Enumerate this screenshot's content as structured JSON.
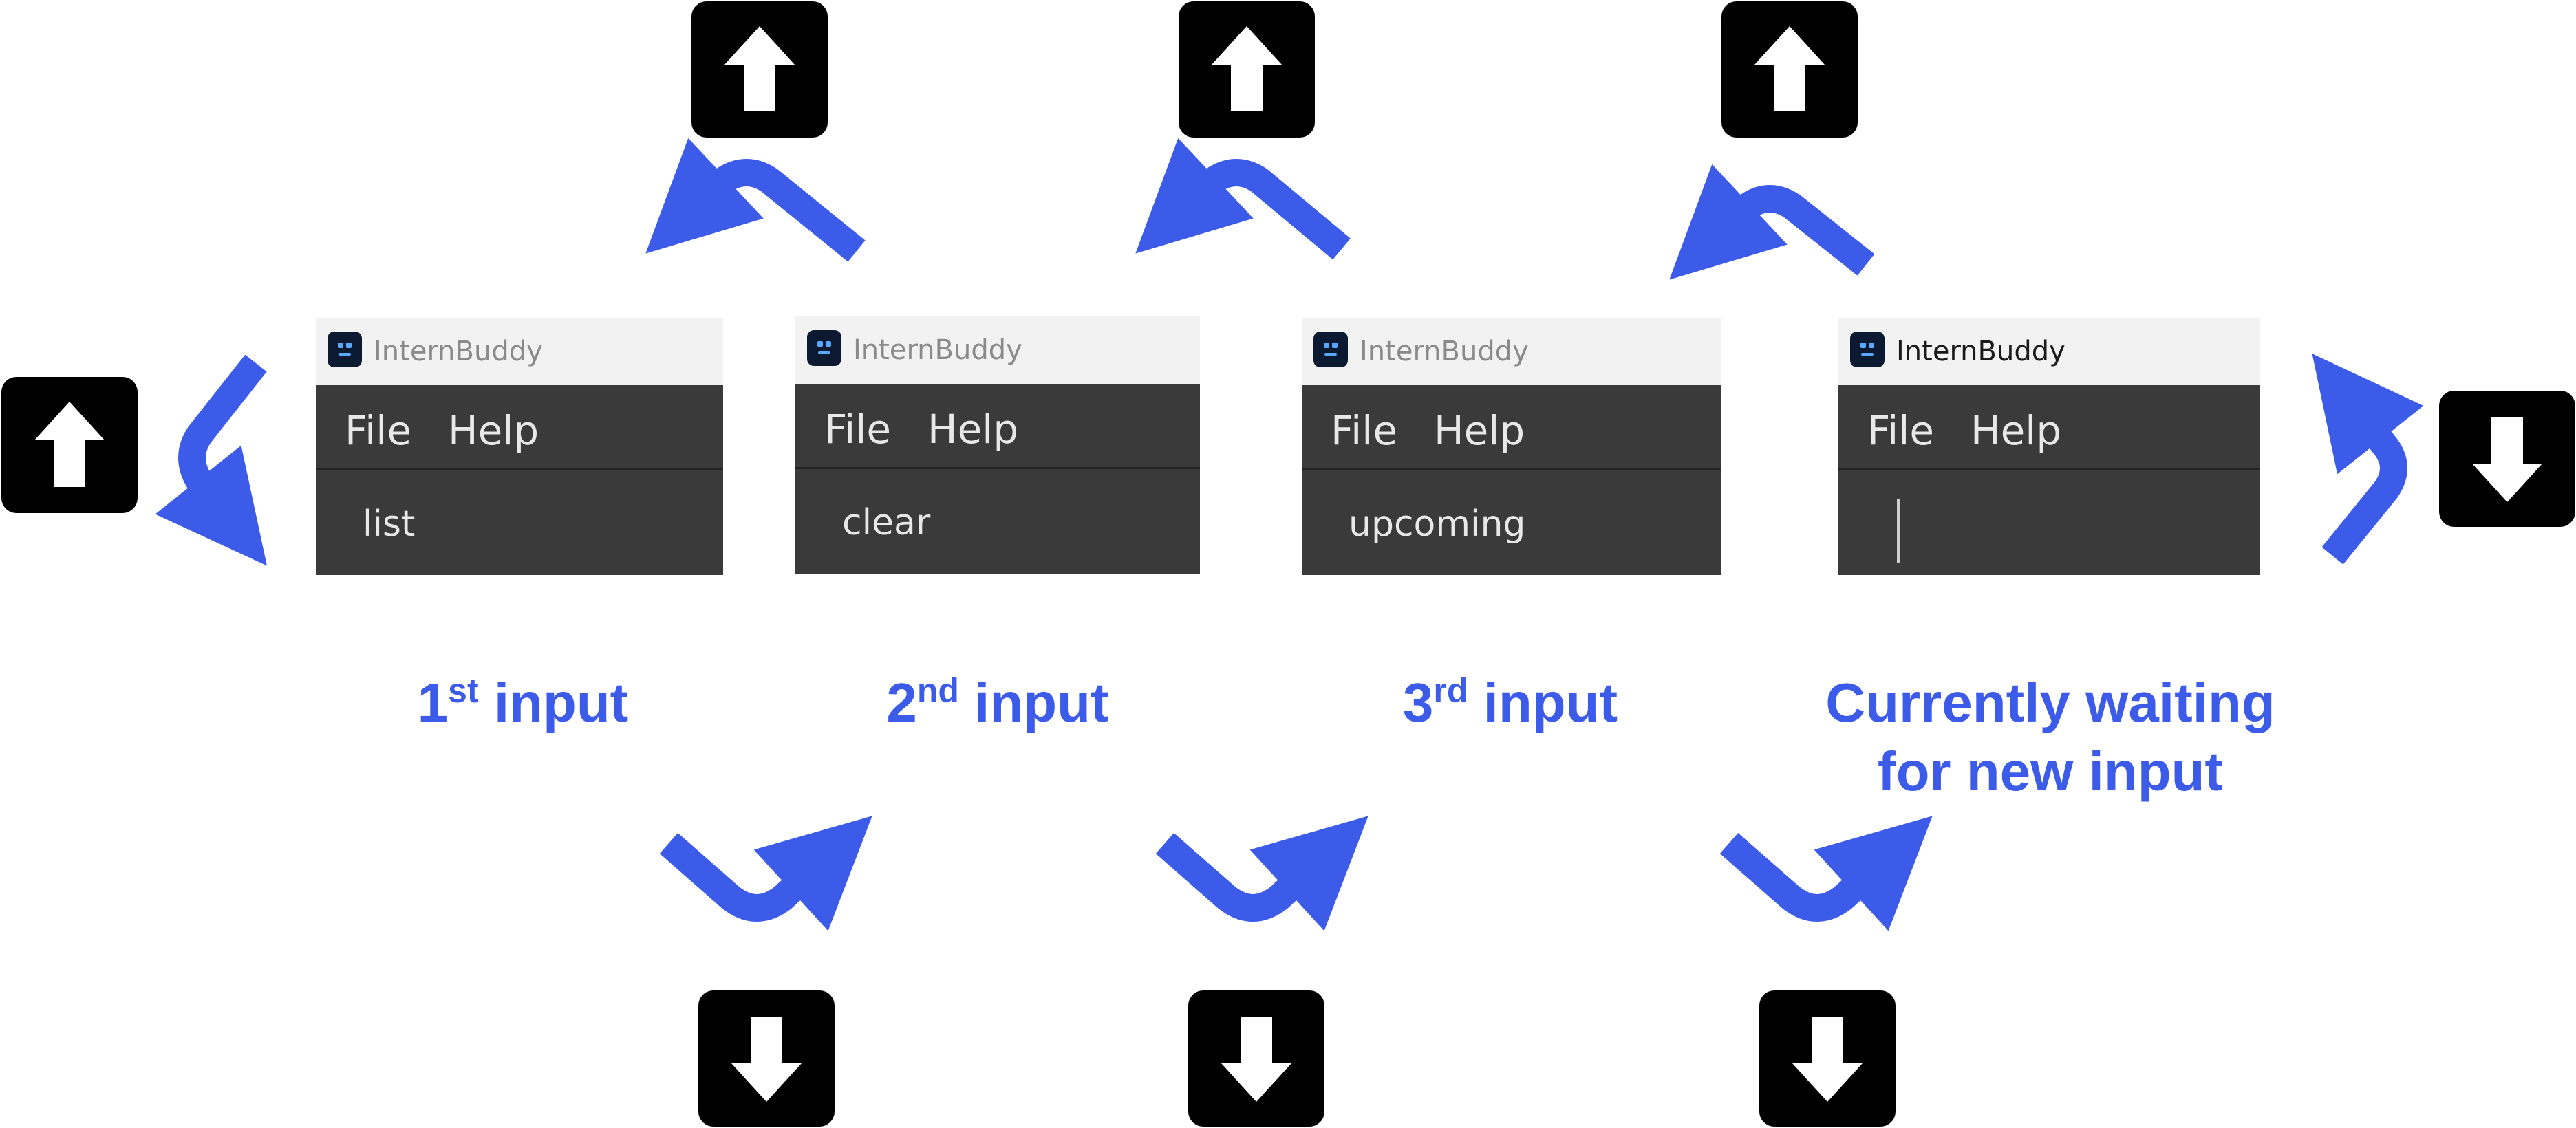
{
  "app_name": "InternBuddy",
  "menu": {
    "file": "File",
    "help": "Help"
  },
  "windows": [
    {
      "command": "list"
    },
    {
      "command": "clear"
    },
    {
      "command": "upcoming"
    },
    {
      "command": ""
    }
  ],
  "labels": {
    "first_num": "1",
    "first_sup": "st",
    "first_word": " input",
    "second_num": "2",
    "second_sup": "nd",
    "second_word": " input",
    "third_num": "3",
    "third_sup": "rd",
    "third_word": " input",
    "waiting_line1": "Currently waiting",
    "waiting_line2": "for new input"
  },
  "keys": {
    "up_icon": "arrow-up-key",
    "down_icon": "arrow-down-key"
  },
  "colors": {
    "accent_blue": "#3b5be8",
    "key_background": "#000000",
    "window_dark": "#3a3a3a",
    "titlebar": "#f2f2f2"
  }
}
